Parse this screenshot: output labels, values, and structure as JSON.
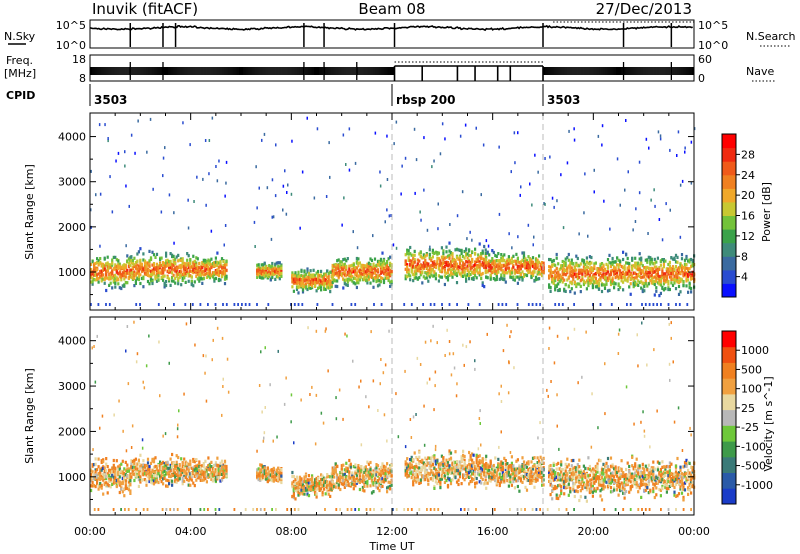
{
  "header": {
    "station": "Inuvik (fitACF)",
    "beam": "Beam 08",
    "date": "27/Dec/2013"
  },
  "summary_panels": {
    "nsky_label": "N.Sky",
    "nsky_ticks": [
      "10^5",
      "10^0"
    ],
    "nsearch_label": "N.Search",
    "nsearch_ticks": [
      "10^5",
      "10^0"
    ],
    "freq_label": "Freq.",
    "freq_unit": "[MHz]",
    "freq_ticks": [
      "18",
      "8"
    ],
    "nave_label": "Nave",
    "nave_ticks": [
      "60",
      "0"
    ],
    "cpid_label": "CPID",
    "cpid_segments": [
      {
        "label": "3503",
        "start_h": 0,
        "end_h": 12
      },
      {
        "label": "rbsp 200",
        "start_h": 12,
        "end_h": 18
      },
      {
        "label": "3503",
        "start_h": 18,
        "end_h": 24
      }
    ]
  },
  "chart_data": [
    {
      "type": "heatmap",
      "name": "power",
      "ylabel": "Slant Range [km]",
      "xlabel": "",
      "xlim_hours": [
        0,
        24
      ],
      "ylim_km": [
        180,
        4500
      ],
      "yticks": [
        1000,
        2000,
        3000,
        4000
      ],
      "colorbar": {
        "label": "Power [dB]",
        "range": [
          0,
          32
        ],
        "ticks": [
          "4",
          "8",
          "12",
          "16",
          "20",
          "24",
          "28"
        ],
        "colors": [
          "#0a10ff",
          "#2a4cd0",
          "#3a6aa0",
          "#3e8b7a",
          "#3aa24a",
          "#73c23a",
          "#c8c832",
          "#f0a82a",
          "#f08020",
          "#f05a1a",
          "#f02a10",
          "#ff0000"
        ]
      },
      "echo_bands": [
        {
          "start_h": 0.0,
          "end_h": 1.6,
          "center_km": 1000,
          "half_width_km": 500
        },
        {
          "start_h": 1.6,
          "end_h": 4.3,
          "center_km": 1050,
          "half_width_km": 500
        },
        {
          "start_h": 4.3,
          "end_h": 5.4,
          "center_km": 1050,
          "half_width_km": 400
        },
        {
          "start_h": 6.6,
          "end_h": 7.6,
          "center_km": 1000,
          "half_width_km": 250
        },
        {
          "start_h": 8.0,
          "end_h": 9.6,
          "center_km": 800,
          "half_width_km": 350
        },
        {
          "start_h": 9.6,
          "end_h": 12.0,
          "center_km": 1000,
          "half_width_km": 450
        },
        {
          "start_h": 12.5,
          "end_h": 15.7,
          "center_km": 1150,
          "half_width_km": 550
        },
        {
          "start_h": 15.7,
          "end_h": 18.0,
          "center_km": 1100,
          "half_width_km": 450
        },
        {
          "start_h": 18.2,
          "end_h": 24.0,
          "center_km": 950,
          "half_width_km": 550
        }
      ]
    },
    {
      "type": "heatmap",
      "name": "velocity",
      "ylabel": "Slant Range [km]",
      "xlabel": "Time UT",
      "xticks": [
        "00:00",
        "04:00",
        "08:00",
        "12:00",
        "16:00",
        "20:00",
        "00:00"
      ],
      "xlim_hours": [
        0,
        24
      ],
      "ylim_km": [
        180,
        4500
      ],
      "yticks": [
        1000,
        2000,
        3000,
        4000
      ],
      "colorbar": {
        "label": "Velocity [m s^-1]",
        "ticks": [
          "1000",
          "500",
          "100",
          "25",
          "-25",
          "-100",
          "-500",
          "-1000"
        ],
        "colors": [
          "#1a3cc8",
          "#2a5aa8",
          "#3a7a78",
          "#3e9a4a",
          "#6ec83a",
          "#b8b8b8",
          "#e8d8a0",
          "#f0a040",
          "#f08020",
          "#f05010",
          "#ff0000"
        ]
      },
      "echo_bands": [
        {
          "start_h": 0.0,
          "end_h": 1.6,
          "center_km": 1000,
          "half_width_km": 500
        },
        {
          "start_h": 1.6,
          "end_h": 4.3,
          "center_km": 1100,
          "half_width_km": 450
        },
        {
          "start_h": 4.3,
          "end_h": 5.4,
          "center_km": 1100,
          "half_width_km": 350
        },
        {
          "start_h": 6.6,
          "end_h": 7.6,
          "center_km": 1050,
          "half_width_km": 250
        },
        {
          "start_h": 8.0,
          "end_h": 9.6,
          "center_km": 800,
          "half_width_km": 350
        },
        {
          "start_h": 9.6,
          "end_h": 12.0,
          "center_km": 1000,
          "half_width_km": 450
        },
        {
          "start_h": 12.5,
          "end_h": 15.7,
          "center_km": 1150,
          "half_width_km": 500
        },
        {
          "start_h": 15.7,
          "end_h": 18.0,
          "center_km": 1100,
          "half_width_km": 450
        },
        {
          "start_h": 18.2,
          "end_h": 24.0,
          "center_km": 950,
          "half_width_km": 550
        }
      ]
    }
  ]
}
